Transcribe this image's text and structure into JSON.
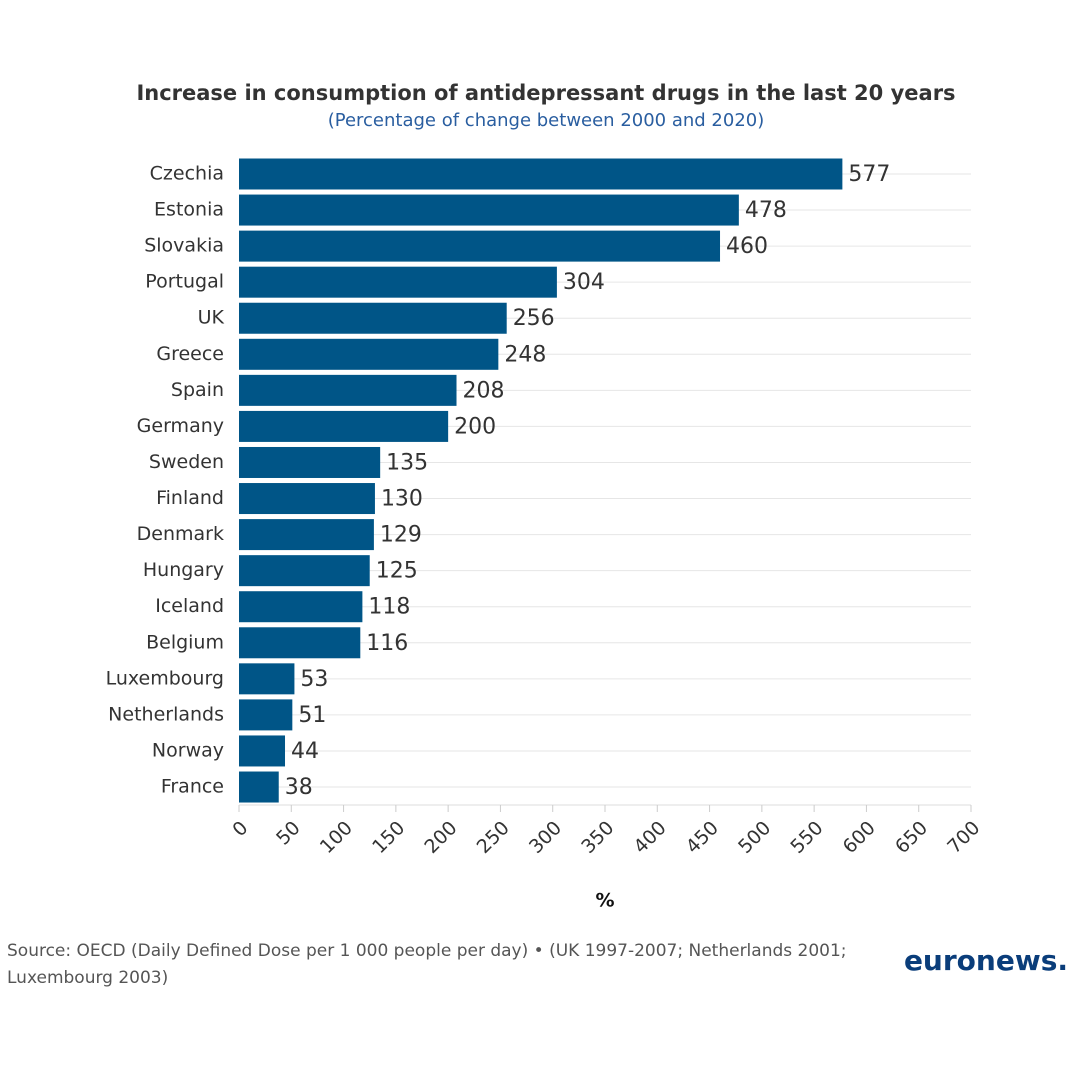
{
  "chart_data": {
    "type": "bar",
    "orientation": "horizontal",
    "title": "Increase in consumption of antidepressant drugs in the last 20 years",
    "subtitle": "(Percentage of change between 2000 and 2020)",
    "categories": [
      "Czechia",
      "Estonia",
      "Slovakia",
      "Portugal",
      "UK",
      "Greece",
      "Spain",
      "Germany",
      "Sweden",
      "Finland",
      "Denmark",
      "Hungary",
      "Iceland",
      "Belgium",
      "Luxembourg",
      "Netherlands",
      "Norway",
      "France"
    ],
    "values": [
      577,
      478,
      460,
      304,
      256,
      248,
      208,
      200,
      135,
      130,
      129,
      125,
      118,
      116,
      53,
      51,
      44,
      38
    ],
    "color": "#005587",
    "xlim": [
      0,
      700
    ],
    "xticks": [
      0,
      50,
      100,
      150,
      200,
      250,
      300,
      350,
      400,
      450,
      500,
      550,
      600,
      650,
      700
    ],
    "xlabel": "%",
    "source": "Source: OECD (Daily Defined Dose per 1 000 people per day) • (UK 1997-2007; Netherlands 2001; Luxembourg 2003)",
    "logo": "euronews."
  }
}
